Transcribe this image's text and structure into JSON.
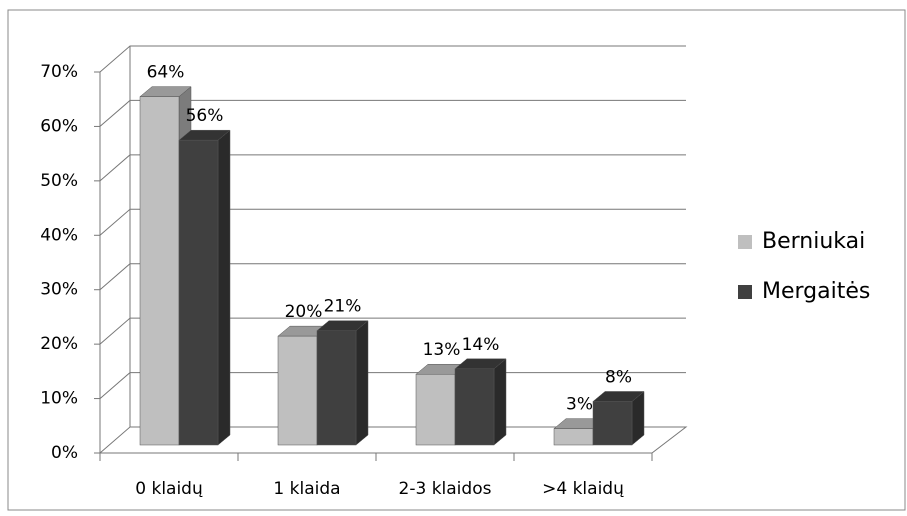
{
  "chart_data": {
    "type": "bar3d",
    "categories": [
      "0 klaidų",
      "1 klaida",
      "2-3 klaidos",
      ">4 klaidų"
    ],
    "series": [
      {
        "name": "Berniukai",
        "color": "#bfbfbf",
        "values": [
          64,
          20,
          13,
          3
        ],
        "value_labels": [
          "64%",
          "20%",
          "13%",
          "3%"
        ]
      },
      {
        "name": "Mergaitės",
        "color": "#404040",
        "values": [
          56,
          21,
          14,
          8
        ],
        "value_labels": [
          "56%",
          "21%",
          "14%",
          "8%"
        ]
      }
    ],
    "ylim": [
      0,
      70
    ],
    "yticks": [
      {
        "value": 0,
        "label": "0%"
      },
      {
        "value": 10,
        "label": "10%"
      },
      {
        "value": 20,
        "label": "20%"
      },
      {
        "value": 30,
        "label": "30%"
      },
      {
        "value": 40,
        "label": "40%"
      },
      {
        "value": 50,
        "label": "50%"
      },
      {
        "value": 60,
        "label": "60%"
      },
      {
        "value": 70,
        "label": "70%"
      }
    ],
    "grid": true,
    "legend": "right"
  }
}
